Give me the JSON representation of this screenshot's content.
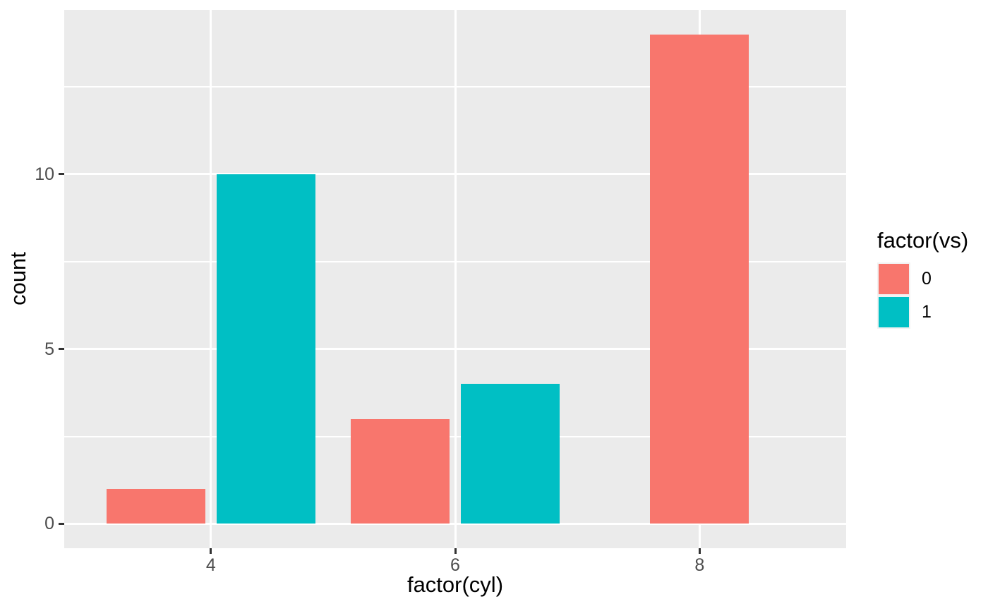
{
  "chart_data": {
    "type": "bar",
    "mode": "dodge",
    "title": "",
    "xlabel": "factor(cyl)",
    "ylabel": "count",
    "categories": [
      "4",
      "6",
      "8"
    ],
    "series": [
      {
        "name": "0",
        "color": "#F8766D",
        "values": [
          1,
          3,
          14
        ]
      },
      {
        "name": "1",
        "color": "#00BFC4",
        "values": [
          10,
          4,
          0
        ]
      }
    ],
    "y_ticks": [
      0,
      5,
      10
    ],
    "y_minor_ticks": [
      2.5,
      7.5,
      12.5
    ],
    "ylim": [
      -0.7,
      14.7
    ],
    "bar_width_units": 0.405,
    "dodge_offset_units": 0.225,
    "grid": "on",
    "legend": {
      "title": "factor(vs)",
      "position": "right",
      "entries": [
        {
          "label": "0",
          "color": "#F8766D"
        },
        {
          "label": "1",
          "color": "#00BFC4"
        }
      ]
    },
    "theme": {
      "background": "#FFFFFF",
      "panel_bg": "#EBEBEB",
      "grid_color": "#FFFFFF",
      "tick_color": "#333333",
      "tick_label_color": "#4D4D4D",
      "title_color": "#000000",
      "legend_key_bg": "#F2F2F2"
    }
  }
}
